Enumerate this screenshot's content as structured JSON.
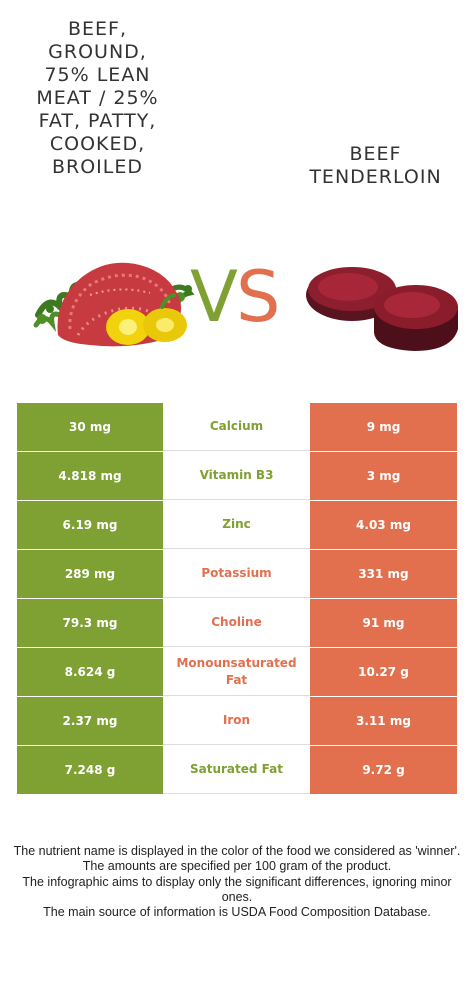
{
  "titles": {
    "left": "Beef, ground, 75% lean meat / 25% fat, patty, cooked, broiled",
    "left_lines": "BEEF,\nGROUND,\n75% LEAN\nMEAT / 25%\nFAT, PATTY,\nCOOKED,\nBROILED",
    "right_lines": "BEEF\nTENDERLOIN"
  },
  "vs": {
    "v": "V",
    "s": "S"
  },
  "colors": {
    "left_food": "#7fa033",
    "right_food": "#e2704f",
    "neutral_border": "#dddddd"
  },
  "rows": [
    {
      "nutrient": "Calcium",
      "left": "30 mg",
      "right": "9 mg",
      "winner": "left"
    },
    {
      "nutrient": "Vitamin B3",
      "left": "4.818 mg",
      "right": "3 mg",
      "winner": "left"
    },
    {
      "nutrient": "Zinc",
      "left": "6.19 mg",
      "right": "4.03 mg",
      "winner": "left"
    },
    {
      "nutrient": "Potassium",
      "left": "289 mg",
      "right": "331 mg",
      "winner": "right"
    },
    {
      "nutrient": "Choline",
      "left": "79.3 mg",
      "right": "91 mg",
      "winner": "right"
    },
    {
      "nutrient": "Monounsaturated Fat",
      "left": "8.624 g",
      "right": "10.27 g",
      "winner": "right"
    },
    {
      "nutrient": "Iron",
      "left": "2.37 mg",
      "right": "3.11 mg",
      "winner": "right"
    },
    {
      "nutrient": "Saturated Fat",
      "left": "7.248 g",
      "right": "9.72 g",
      "winner": "left"
    }
  ],
  "footer": {
    "line1": "The nutrient name is displayed in the color of the food we considered as 'winner'.",
    "line2": "The amounts are specified per 100 gram of the product.",
    "line3": "The infographic aims to display only the significant differences, ignoring minor ones.",
    "line4": "The main source of information is USDA Food Composition Database."
  },
  "images": {
    "left": "ground-beef-with-peppers-illustration",
    "right": "beef-tenderloin-illustration"
  }
}
